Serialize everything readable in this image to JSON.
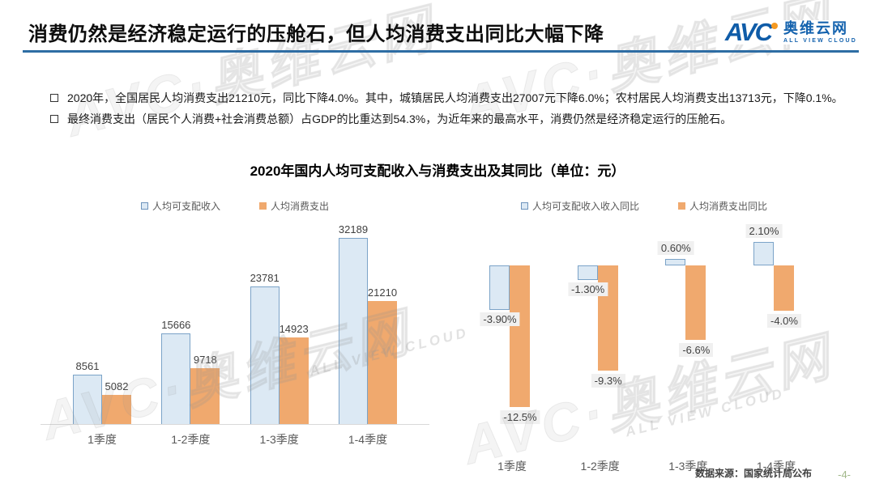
{
  "header": {
    "title": "消费仍然是经济稳定运行的压舱石，但人均消费支出同比大幅下降",
    "logo": {
      "abbr": "AVC",
      "name_cn": "奥维云网",
      "name_en": "ALL VIEW CLOUD"
    }
  },
  "bullets": [
    "2020年，全国居民人均消费支出21210元，同比下降4.0%。其中，城镇居民人均消费支出27007元下降6.0%；农村居民人均消费支出13713元，下降0.1%。",
    "最终消费支出（居民个人消费+社会消费总额）占GDP的比重达到54.3%，为近年来的最高水平，消费仍然是经济稳定运行的压舱石。"
  ],
  "chart_data": [
    {
      "type": "bar",
      "title": "2020年国内人均可支配收入与消费支出及其同比（单位：元）",
      "categories": [
        "1季度",
        "1-2季度",
        "1-3季度",
        "1-4季度"
      ],
      "series": [
        {
          "name": "人均可支配收入",
          "values": [
            8561,
            15666,
            23781,
            32189
          ],
          "labels": [
            "8561",
            "15666",
            "23781",
            "32189"
          ],
          "fill": "#dce9f4",
          "border": "#7ba3c8"
        },
        {
          "name": "人均消费支出",
          "values": [
            5082,
            9718,
            14923,
            21210
          ],
          "labels": [
            "5082",
            "9718",
            "14923",
            "21210"
          ],
          "fill": "#f0a96e"
        }
      ],
      "ylim": [
        0,
        35000
      ],
      "grid": false,
      "axes_hidden": true,
      "legend_position": "top"
    },
    {
      "type": "bar",
      "title": "",
      "categories": [
        "1季度",
        "1-2季度",
        "1-3季度",
        "1-4季度"
      ],
      "series": [
        {
          "name": "人均可支配收入收入同比",
          "values": [
            -3.9,
            -1.3,
            0.6,
            2.1
          ],
          "labels": [
            "-3.90%",
            "-1.30%",
            "0.60%",
            "2.10%"
          ],
          "fill": "#dce9f4",
          "border": "#7ba3c8"
        },
        {
          "name": "人均消费支出同比",
          "values": [
            -12.5,
            -9.3,
            -6.6,
            -4.0
          ],
          "labels": [
            "-12.5%",
            "-9.3%",
            "-6.6%",
            "-4.0%"
          ],
          "fill": "#f0a96e"
        }
      ],
      "ylim": [
        -14,
        3
      ],
      "grid": false,
      "axes_hidden": true,
      "legend_position": "top"
    }
  ],
  "footer": {
    "source": "数据来源：国家统计局公布",
    "page": "-4-"
  },
  "watermark": {
    "big": "AVC·奥维云网",
    "small": "ALL VIEW CLOUD"
  },
  "colors": {
    "title_underline": "#2e6da4",
    "logo_blue": "#1563ae",
    "logo_dot_orange": "#f59a23",
    "bar_blue_fill": "#dce9f4",
    "bar_blue_border": "#7ba3c8",
    "bar_orange": "#f0a96e",
    "value_label_bg": "#f0f0f0",
    "page_number_green": "#a2b88a",
    "axis_line": "#d9d9d9"
  }
}
